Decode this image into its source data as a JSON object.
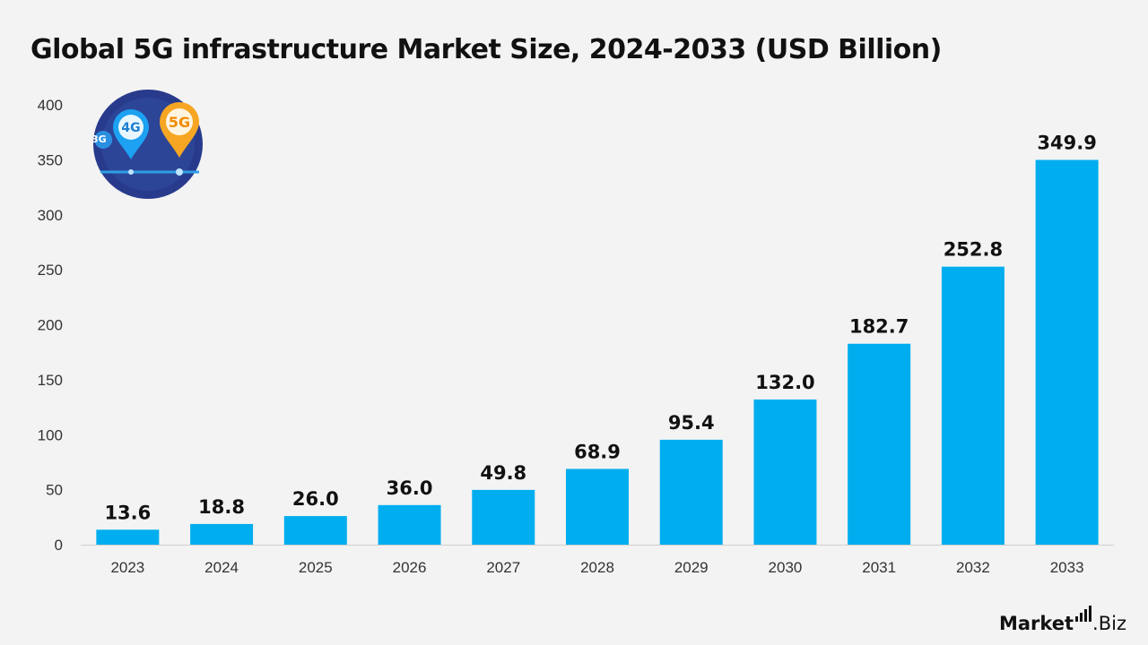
{
  "title": "Global 5G infrastructure Market Size, 2024-2033 (USD Billion)",
  "brand": {
    "name_bold": "Market",
    "name_light": ".Biz"
  },
  "logo": {
    "icon": "5g-4g-location-pins-icon",
    "labels": [
      "4G",
      "5G",
      "3G"
    ]
  },
  "colors": {
    "bar": "#00aeef",
    "text": "#111111",
    "axis": "#cfcfcf"
  },
  "chart_data": {
    "type": "bar",
    "title": "Global 5G infrastructure Market Size, 2024-2033 (USD Billion)",
    "xlabel": "",
    "ylabel": "",
    "categories": [
      "2023",
      "2024",
      "2025",
      "2026",
      "2027",
      "2028",
      "2029",
      "2030",
      "2031",
      "2032",
      "2033"
    ],
    "values": [
      13.6,
      18.8,
      26.0,
      36.0,
      49.8,
      68.9,
      95.4,
      132.0,
      182.7,
      252.8,
      349.9
    ],
    "value_labels": [
      "13.6",
      "18.8",
      "26.0",
      "36.0",
      "49.8",
      "68.9",
      "95.4",
      "132.0",
      "182.7",
      "252.8",
      "349.9"
    ],
    "yticks": [
      0,
      50,
      100,
      150,
      200,
      250,
      300,
      350,
      400
    ],
    "ylim": [
      0,
      400
    ],
    "grid": false,
    "legend": "none"
  }
}
